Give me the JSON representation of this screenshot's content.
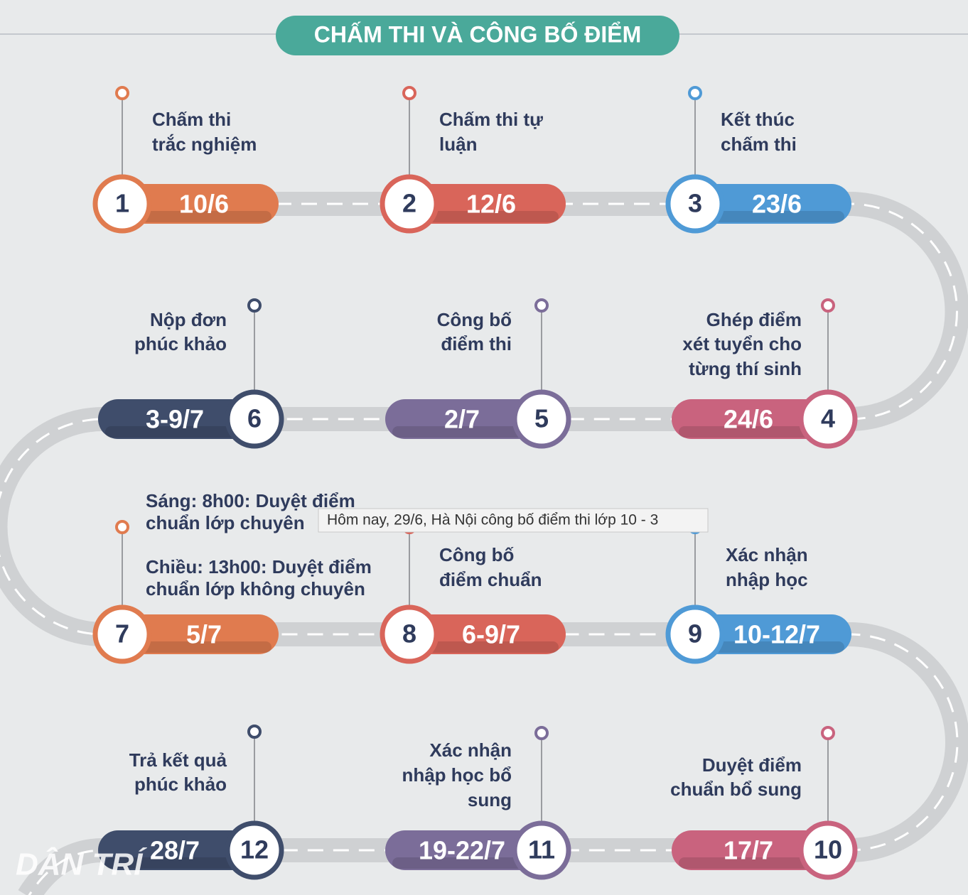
{
  "header": {
    "title": "CHẤM THI VÀ CÔNG BỐ ĐIỂM"
  },
  "steps": [
    {
      "number": "1",
      "date": "10/6",
      "color": "#e07b4f",
      "label": [
        "Chấm thi",
        "trắc nghiệm"
      ]
    },
    {
      "number": "2",
      "date": "12/6",
      "color": "#d9655a",
      "label": [
        "Chấm thi tự",
        "luận"
      ]
    },
    {
      "number": "3",
      "date": "23/6",
      "color": "#4f9ad6",
      "label": [
        "Kết thúc",
        "chấm thi"
      ]
    },
    {
      "number": "4",
      "date": "24/6",
      "color": "#c9637e",
      "label": [
        "Ghép điểm",
        "xét tuyển cho",
        "từng thí sinh"
      ]
    },
    {
      "number": "5",
      "date": "2/7",
      "color": "#7b6d99",
      "label": [
        "Công bố",
        "điểm thi"
      ]
    },
    {
      "number": "6",
      "date": "3-9/7",
      "color": "#3f4d6b",
      "label": [
        "Nộp đơn",
        "phúc khảo"
      ]
    },
    {
      "number": "7",
      "date": "5/7",
      "color": "#e07b4f",
      "label": [
        "Sáng: 8h00: Duyệt điểm",
        "chuẩn lớp chuyên",
        "Chiều: 13h00: Duyệt điểm",
        "chuẩn lớp không chuyên"
      ]
    },
    {
      "number": "8",
      "date": "6-9/7",
      "color": "#d9655a",
      "label": [
        "Công bố",
        "điểm chuẩn"
      ]
    },
    {
      "number": "9",
      "date": "10-12/7",
      "color": "#4f9ad6",
      "label": [
        "Xác nhận",
        "nhập học"
      ]
    },
    {
      "number": "10",
      "date": "17/7",
      "color": "#c9637e",
      "label": [
        "Duyệt điểm",
        "chuẩn bổ sung"
      ]
    },
    {
      "number": "11",
      "date": "19-22/7",
      "color": "#7b6d99",
      "label": [
        "Xác nhận",
        "nhập học bổ",
        "sung"
      ]
    },
    {
      "number": "12",
      "date": "28/7",
      "color": "#3f4d6b",
      "label": [
        "Trả kết quả",
        "phúc khảo"
      ]
    }
  ],
  "tooltip": "Hôm nay, 29/6, Hà Nội công bố điểm thi lớp 10 - 3",
  "watermark": "DÂN TRÍ"
}
